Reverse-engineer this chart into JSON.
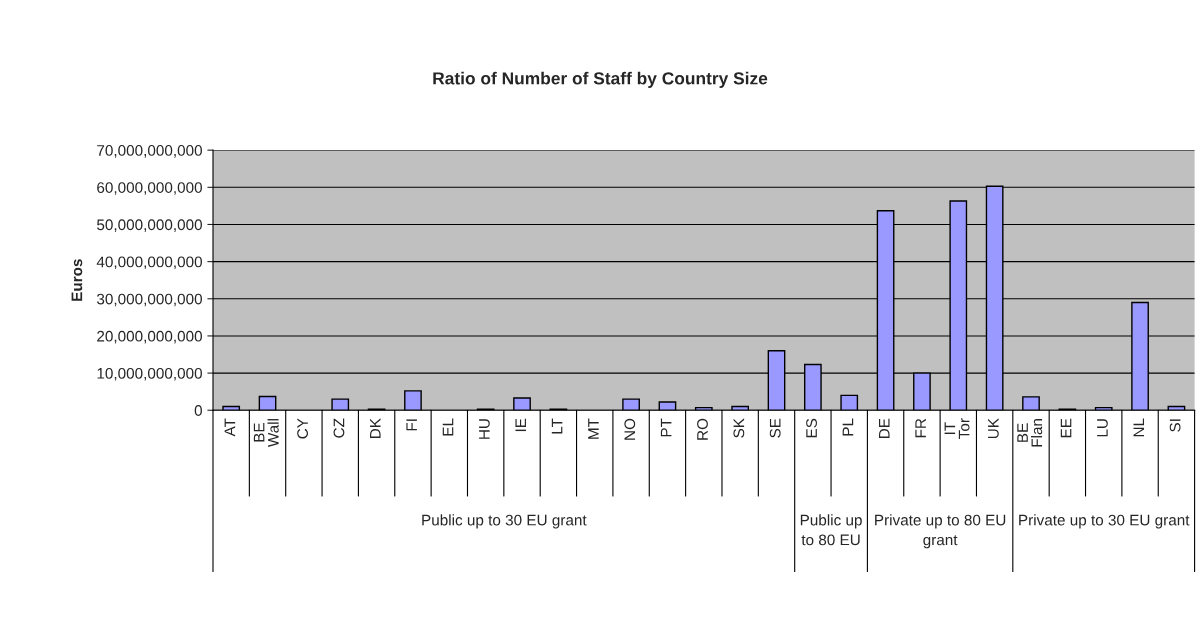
{
  "chart_data": {
    "type": "bar",
    "title": "Ratio of Number of Staff by Country Size",
    "ylabel": "Euros",
    "categories": [
      "AT",
      "BE Wall",
      "CY",
      "CZ",
      "DK",
      "FI",
      "EL",
      "HU",
      "IE",
      "LT",
      "MT",
      "NO",
      "PT",
      "RO",
      "SK",
      "SE",
      "ES",
      "PL",
      "DE",
      "FR",
      "IT Tor",
      "UK",
      "BE Flan",
      "EE",
      "LU",
      "NL",
      "SI"
    ],
    "values": [
      1000000000,
      3700000000,
      0,
      3000000000,
      300000000,
      5200000000,
      0,
      300000000,
      3300000000,
      300000000,
      0,
      3000000000,
      2200000000,
      700000000,
      1000000000,
      16000000000,
      12300000000,
      4000000000,
      53700000000,
      10000000000,
      56300000000,
      60300000000,
      3600000000,
      300000000,
      700000000,
      29000000000,
      1000000000
    ],
    "color": "#9999ff",
    "ylim": [
      0,
      70000000000
    ],
    "yticks": [
      {
        "value": 0,
        "label": "0"
      },
      {
        "value": 10000000000,
        "label": "10,000,000,000"
      },
      {
        "value": 20000000000,
        "label": "20,000,000,000"
      },
      {
        "value": 30000000000,
        "label": "30,000,000,000"
      },
      {
        "value": 40000000000,
        "label": "40,000,000,000"
      },
      {
        "value": 50000000000,
        "label": "50,000,000,000"
      },
      {
        "value": 60000000000,
        "label": "60,000,000,000"
      },
      {
        "value": 70000000000,
        "label": "70,000,000,000"
      }
    ],
    "grid": "y",
    "annotations": [
      "Public up to 30 EU grant",
      "Public up to 80 EU",
      "Private up to 80 EU grant",
      "Private up to 30 EU grant"
    ]
  }
}
